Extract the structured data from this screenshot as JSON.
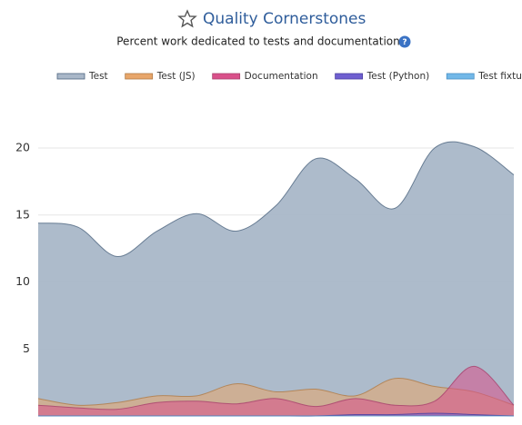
{
  "chart_data": {
    "type": "area",
    "title": "Quality Cornerstones",
    "subtitle": "Percent work dedicated to tests and documentation",
    "categories": [
      null,
      null,
      null,
      null,
      null,
      null,
      null,
      null,
      null,
      null,
      null,
      null,
      null
    ],
    "series": [
      {
        "name": "Test",
        "color": "#a9b7c8",
        "stroke": "#4e6580",
        "values": [
          14.4,
          14.1,
          11.9,
          13.8,
          15.1,
          13.8,
          15.7,
          19.2,
          17.7,
          15.5,
          20.0,
          20.1,
          18.0
        ]
      },
      {
        "name": "Test (JS)",
        "color": "#e8a66a",
        "stroke": "#b07a45",
        "values": [
          1.3,
          0.8,
          1.0,
          1.5,
          1.5,
          2.4,
          1.8,
          2.0,
          1.5,
          2.8,
          2.2,
          1.8,
          0.8
        ]
      },
      {
        "name": "Documentation",
        "color": "#d9508a",
        "stroke": "#a8406c",
        "values": [
          0.8,
          0.6,
          0.5,
          1.0,
          1.1,
          0.9,
          1.3,
          0.7,
          1.3,
          0.8,
          1.1,
          3.7,
          0.8
        ]
      },
      {
        "name": "Test (Python)",
        "color": "#6f5fd0",
        "stroke": "#4a3ea0",
        "values": [
          0,
          0,
          0,
          0,
          0,
          0,
          0,
          0,
          0.1,
          0.1,
          0.2,
          0.1,
          0
        ]
      },
      {
        "name": "Test fixture",
        "color": "#72b8e8",
        "stroke": "#4a90c4",
        "values": [
          0,
          0,
          0,
          0,
          0,
          0,
          0,
          0,
          0,
          0,
          0,
          0,
          0
        ]
      }
    ],
    "ylim": [
      0,
      21
    ],
    "yticks": [
      5,
      10,
      15,
      20
    ],
    "grid": true
  }
}
